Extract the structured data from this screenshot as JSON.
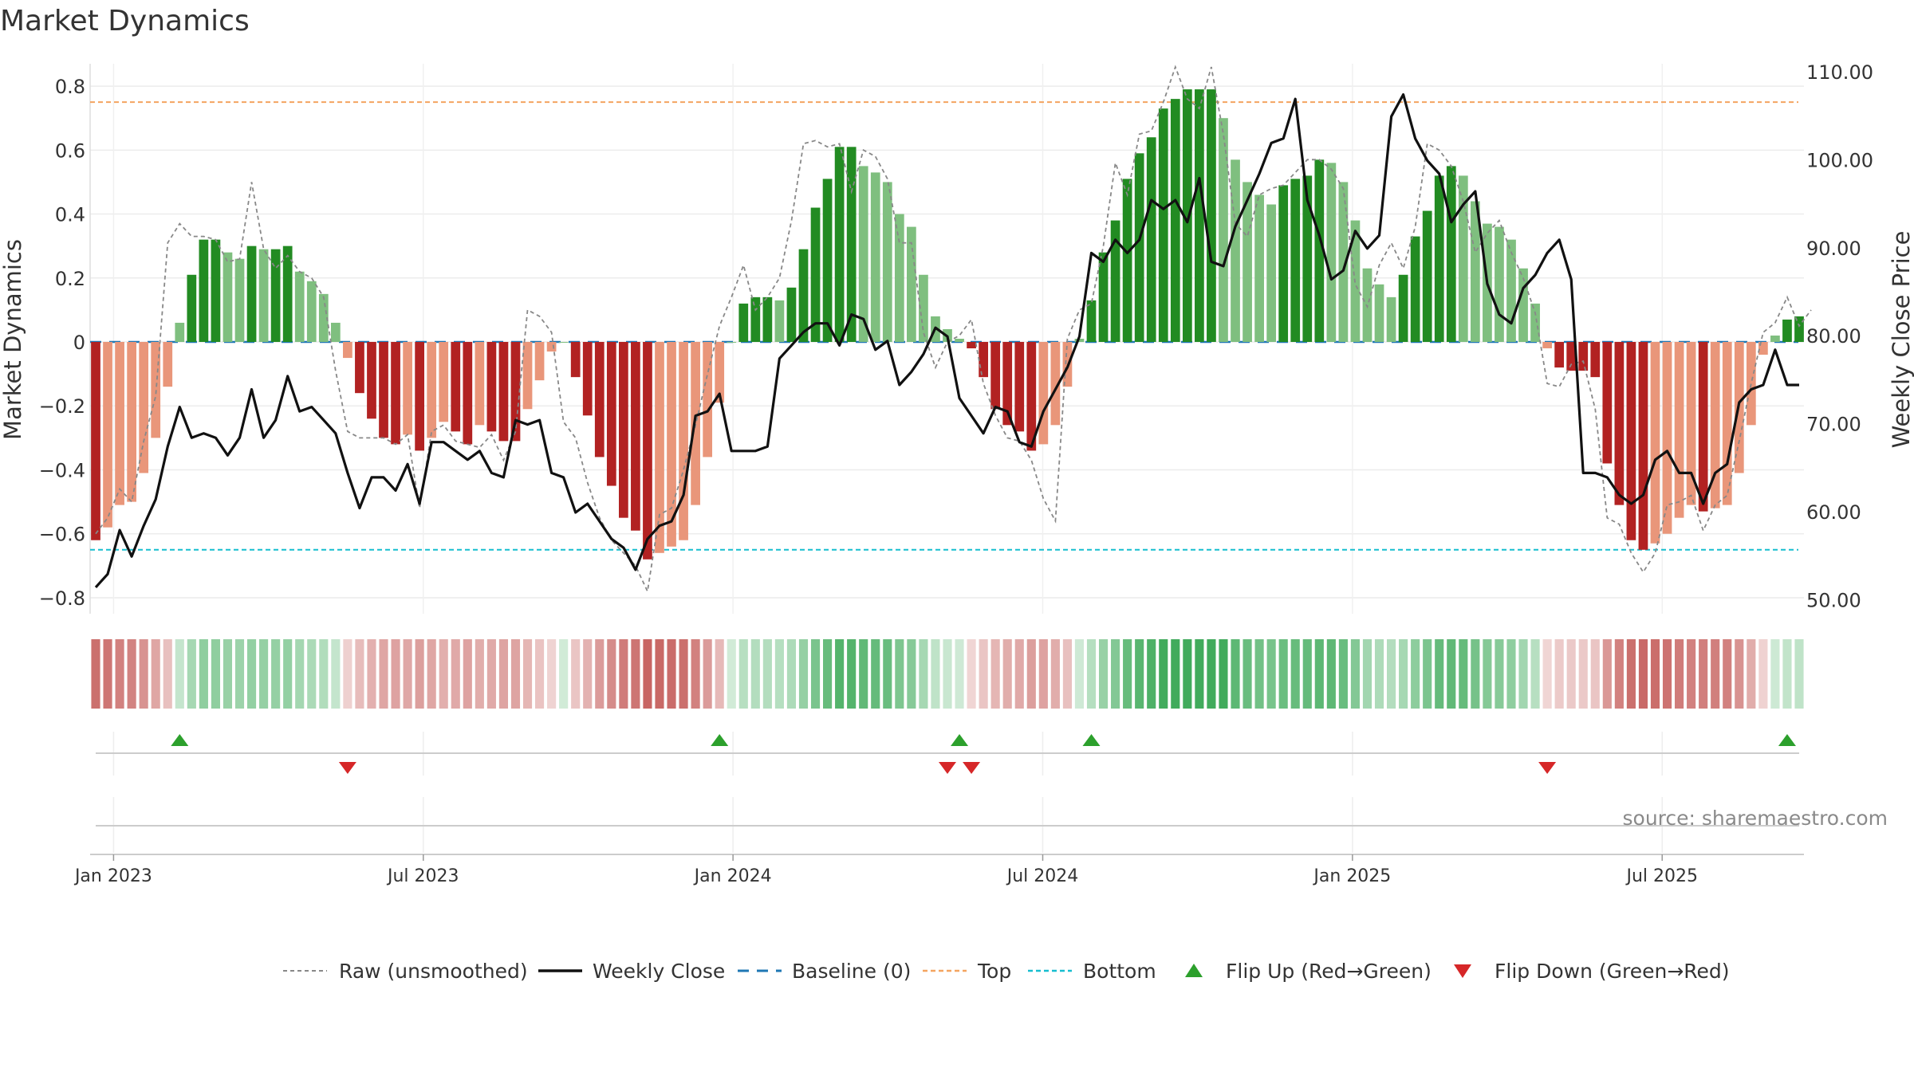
{
  "chart_data": {
    "type": "bar",
    "title": "Market Dynamics",
    "ylabel_left": "Market Dynamics",
    "ylabel_right": "Weekly Close Price",
    "left_ylim": [
      -0.85,
      0.87
    ],
    "left_ticks": [
      "0.8",
      "0.6",
      "0.4",
      "0.2",
      "0",
      "−0.2",
      "−0.4",
      "−0.6",
      "−0.8"
    ],
    "left_tick_values": [
      0.8,
      0.6,
      0.4,
      0.2,
      0,
      -0.2,
      -0.4,
      -0.6,
      -0.8
    ],
    "right_ylim": [
      48.5,
      111
    ],
    "right_ticks": [
      "110.00",
      "100.00",
      "90.00",
      "80.00",
      "70.00",
      "60.00",
      "50.00"
    ],
    "right_tick_values": [
      110,
      100,
      90,
      80,
      70,
      60,
      50
    ],
    "x_ticks": [
      "Jan 2023",
      "Jul 2023",
      "Jan 2024",
      "Jul 2024",
      "Jan 2025",
      "Jul 2025"
    ],
    "x_tick_weeks": [
      1.5,
      27.5,
      53.5,
      79.5,
      105.5,
      131.5
    ],
    "x_range_weeks": [
      0,
      143
    ],
    "top_level": 0.75,
    "bottom_level": -0.65,
    "baseline": 0,
    "grid": true,
    "legend_position": "bottom",
    "bars": [
      -0.62,
      -0.58,
      -0.51,
      -0.5,
      -0.41,
      -0.3,
      -0.14,
      0.06,
      0.21,
      0.32,
      0.32,
      0.28,
      0.26,
      0.3,
      0.29,
      0.29,
      0.3,
      0.22,
      0.19,
      0.15,
      0.06,
      -0.05,
      -0.16,
      -0.24,
      -0.3,
      -0.32,
      -0.29,
      -0.34,
      -0.3,
      -0.25,
      -0.28,
      -0.32,
      -0.26,
      -0.28,
      -0.31,
      -0.31,
      -0.21,
      -0.12,
      -0.03,
      0,
      -0.11,
      -0.23,
      -0.36,
      -0.45,
      -0.55,
      -0.59,
      -0.68,
      -0.66,
      -0.64,
      -0.62,
      -0.51,
      -0.36,
      -0.19,
      0,
      0.12,
      0.14,
      0.14,
      0.13,
      0.17,
      0.29,
      0.42,
      0.51,
      0.61,
      0.61,
      0.55,
      0.53,
      0.5,
      0.4,
      0.36,
      0.21,
      0.08,
      0.04,
      0.01,
      -0.02,
      -0.11,
      -0.21,
      -0.26,
      -0.28,
      -0.34,
      -0.32,
      -0.26,
      -0.14,
      0.01,
      0.13,
      0.28,
      0.38,
      0.51,
      0.59,
      0.64,
      0.73,
      0.76,
      0.79,
      0.79,
      0.79,
      0.7,
      0.57,
      0.5,
      0.46,
      0.43,
      0.49,
      0.51,
      0.52,
      0.57,
      0.56,
      0.5,
      0.38,
      0.23,
      0.18,
      0.14,
      0.21,
      0.33,
      0.41,
      0.52,
      0.55,
      0.52,
      0.44,
      0.37,
      0.36,
      0.32,
      0.23,
      0.12,
      -0.02,
      -0.08,
      -0.09,
      -0.09,
      -0.11,
      -0.38,
      -0.51,
      -0.62,
      -0.65,
      -0.63,
      -0.6,
      -0.55,
      -0.51,
      -0.53,
      -0.52,
      -0.51,
      -0.41,
      -0.26,
      -0.04,
      0.02,
      0.07,
      0.08
    ],
    "raw": [
      -0.6,
      -0.55,
      -0.46,
      -0.5,
      -0.31,
      -0.17,
      0.31,
      0.37,
      0.33,
      0.33,
      0.32,
      0.25,
      0.26,
      0.5,
      0.29,
      0.23,
      0.27,
      0.22,
      0.2,
      0.14,
      -0.09,
      -0.28,
      -0.3,
      -0.3,
      -0.3,
      -0.32,
      -0.29,
      -0.52,
      -0.28,
      -0.26,
      -0.31,
      -0.32,
      -0.33,
      -0.29,
      -0.37,
      -0.28,
      0.1,
      0.08,
      0.03,
      -0.25,
      -0.3,
      -0.44,
      -0.55,
      -0.62,
      -0.66,
      -0.7,
      -0.78,
      -0.54,
      -0.52,
      -0.4,
      -0.26,
      -0.1,
      0.05,
      0.14,
      0.24,
      0.1,
      0.14,
      0.2,
      0.38,
      0.62,
      0.63,
      0.61,
      0.62,
      0.47,
      0.6,
      0.58,
      0.51,
      0.31,
      0.31,
      0.03,
      -0.08,
      0,
      0.02,
      0.07,
      -0.13,
      -0.23,
      -0.3,
      -0.31,
      -0.37,
      -0.49,
      -0.56,
      0.01,
      0.1,
      0.12,
      0.3,
      0.56,
      0.46,
      0.65,
      0.66,
      0.75,
      0.86,
      0.76,
      0.73,
      0.86,
      0.65,
      0.37,
      0.33,
      0.46,
      0.48,
      0.49,
      0.53,
      0.57,
      0.57,
      0.54,
      0.48,
      0.18,
      0.11,
      0.24,
      0.31,
      0.23,
      0.36,
      0.62,
      0.6,
      0.55,
      0.44,
      0.28,
      0.34,
      0.38,
      0.28,
      0.2,
      0.09,
      -0.13,
      -0.14,
      -0.07,
      -0.06,
      -0.21,
      -0.55,
      -0.57,
      -0.66,
      -0.72,
      -0.66,
      -0.51,
      -0.5,
      -0.48,
      -0.59,
      -0.51,
      -0.48,
      -0.31,
      -0.13,
      0.03,
      0.06,
      0.14,
      0.05,
      0.1
    ],
    "weekly_close": [
      51.5,
      53,
      58,
      55,
      58.5,
      61.5,
      67.5,
      72,
      68.5,
      69,
      68.5,
      66.5,
      68.5,
      74,
      68.5,
      70.5,
      75.5,
      71.5,
      72,
      70.5,
      69,
      64.5,
      60.5,
      64,
      64,
      62.5,
      65.5,
      61,
      68,
      68,
      67,
      66,
      67,
      64.5,
      64,
      70.5,
      70,
      70.5,
      64.5,
      64,
      60,
      61,
      59,
      57,
      56,
      53.5,
      57,
      58.5,
      59,
      62,
      71,
      71.5,
      73.5,
      67,
      67,
      67,
      67.5,
      77.5,
      79,
      80.5,
      81.5,
      81.5,
      79,
      82.5,
      82,
      78.5,
      79.5,
      74.5,
      76,
      78,
      81,
      80,
      73,
      71,
      69,
      72,
      71.5,
      68,
      67.5,
      71.5,
      74,
      76.5,
      80,
      89.5,
      88.5,
      91,
      89.5,
      91,
      95.5,
      94.5,
      95.5,
      93,
      98,
      88.5,
      88,
      92.5,
      95.5,
      98.5,
      102,
      102.5,
      107,
      95.5,
      91.5,
      86.5,
      87.5,
      92,
      90,
      91.5,
      105,
      107.5,
      102.5,
      100,
      98.5,
      93,
      95,
      96.5,
      86,
      82.5,
      81.5,
      85.5,
      87,
      89.5,
      91,
      86.5,
      64.5,
      64.5,
      64,
      62,
      61,
      62,
      66,
      67,
      64.5,
      64.5,
      61,
      64.5,
      65.5,
      72.5,
      74,
      74.5,
      78.5,
      74.5,
      74.5
    ],
    "heat_bars": [
      -0.62,
      -0.58,
      -0.51,
      -0.5,
      -0.41,
      -0.3,
      -0.14,
      0.06,
      0.21,
      0.32,
      0.32,
      0.28,
      0.26,
      0.3,
      0.29,
      0.29,
      0.3,
      0.22,
      0.19,
      0.15,
      0.06,
      -0.05,
      -0.16,
      -0.24,
      -0.3,
      -0.32,
      -0.29,
      -0.34,
      -0.3,
      -0.25,
      -0.28,
      -0.32,
      -0.26,
      -0.28,
      -0.31,
      -0.31,
      -0.21,
      -0.12,
      -0.03,
      0,
      -0.11,
      -0.23,
      -0.36,
      -0.45,
      -0.55,
      -0.59,
      -0.68,
      -0.66,
      -0.64,
      -0.62,
      -0.51,
      -0.36,
      -0.19,
      0,
      0.12,
      0.14,
      0.14,
      0.13,
      0.17,
      0.29,
      0.42,
      0.51,
      0.61,
      0.61,
      0.55,
      0.53,
      0.5,
      0.4,
      0.36,
      0.21,
      0.08,
      0.04,
      0.01,
      -0.02,
      -0.11,
      -0.21,
      -0.26,
      -0.28,
      -0.34,
      -0.32,
      -0.26,
      -0.14,
      0.01,
      0.13,
      0.28,
      0.38,
      0.51,
      0.59,
      0.64,
      0.73,
      0.76,
      0.79,
      0.79,
      0.79,
      0.7,
      0.57,
      0.5,
      0.46,
      0.43,
      0.49,
      0.51,
      0.52,
      0.57,
      0.56,
      0.5,
      0.38,
      0.23,
      0.18,
      0.14,
      0.21,
      0.33,
      0.41,
      0.52,
      0.55,
      0.52,
      0.44,
      0.37,
      0.36,
      0.32,
      0.23,
      0.12,
      -0.02,
      -0.08,
      -0.09,
      -0.09,
      -0.11,
      -0.38,
      -0.51,
      -0.62,
      -0.65,
      -0.63,
      -0.6,
      -0.55,
      -0.51,
      -0.53,
      -0.52,
      -0.51,
      -0.41,
      -0.26,
      -0.04,
      0.02,
      0.07,
      0.08
    ],
    "flip_up_weeks": [
      7,
      52,
      72,
      83,
      141
    ],
    "flip_down_weeks": [
      21,
      71,
      73,
      121
    ],
    "legend": [
      "Raw (unsmoothed)",
      "Weekly Close",
      "Baseline (0)",
      "Top",
      "Bottom",
      "Flip Up (Red→Green)",
      "Flip Down (Green→Red)"
    ],
    "source": "source: sharemaestro.com",
    "colors": {
      "strong_green": "#228b22",
      "light_green": "#7fbf7f",
      "strong_red": "#b22222",
      "light_red": "#e9967a",
      "raw": "#888888",
      "close": "#111111",
      "baseline": "#1f77b4",
      "top": "#f4a460",
      "bottom": "#17becf",
      "flip_up": "#2ca02c",
      "flip_down": "#d62728"
    }
  }
}
